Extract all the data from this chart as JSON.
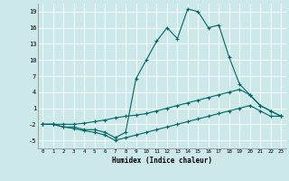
{
  "xlabel": "Humidex (Indice chaleur)",
  "background_color": "#cce8e8",
  "grid_color": "#ffffff",
  "line_color": "#006666",
  "xlim": [
    -0.5,
    23.5
  ],
  "ylim": [
    -6.5,
    20.5
  ],
  "yticks": [
    -5,
    -2,
    1,
    4,
    7,
    10,
    13,
    16,
    19
  ],
  "xticks": [
    0,
    1,
    2,
    3,
    4,
    5,
    6,
    7,
    8,
    9,
    10,
    11,
    12,
    13,
    14,
    15,
    16,
    17,
    18,
    19,
    20,
    21,
    22,
    23
  ],
  "x": [
    0,
    1,
    2,
    3,
    4,
    5,
    6,
    7,
    8,
    9,
    10,
    11,
    12,
    13,
    14,
    15,
    16,
    17,
    18,
    19,
    20,
    21,
    22,
    23
  ],
  "y_max": [
    -2,
    -2,
    -2.5,
    -2.5,
    -3,
    -3,
    -3.5,
    -4.5,
    -3.5,
    6.5,
    10,
    13.5,
    16,
    14,
    19.5,
    19,
    16,
    16.5,
    10.5,
    5.5,
    3.5,
    1.5,
    0.5,
    -0.5
  ],
  "y_mean": [
    -2,
    -2,
    -2,
    -2,
    -1.8,
    -1.5,
    -1.2,
    -0.8,
    -0.5,
    -0.3,
    0,
    0.5,
    1,
    1.5,
    2,
    2.5,
    3,
    3.5,
    4,
    4.5,
    3.5,
    1.5,
    0.5,
    -0.5
  ],
  "y_min": [
    -2,
    -2,
    -2.5,
    -2.8,
    -3.2,
    -3.5,
    -4,
    -5,
    -4.5,
    -4,
    -3.5,
    -3,
    -2.5,
    -2,
    -1.5,
    -1,
    -0.5,
    0,
    0.5,
    1,
    1.5,
    0.5,
    -0.5,
    -0.5
  ]
}
